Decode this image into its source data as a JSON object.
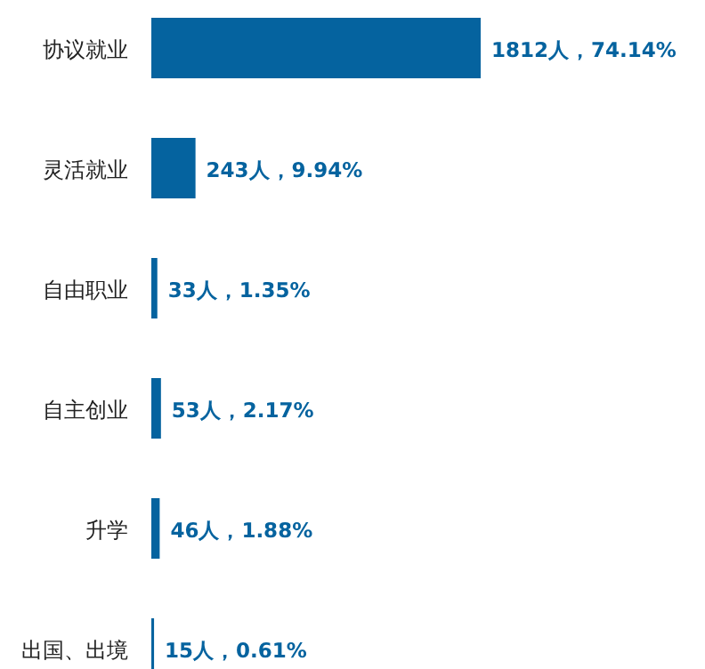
{
  "chart_data": {
    "type": "bar",
    "orientation": "horizontal",
    "categories": [
      "协议就业",
      "灵活就业",
      "自由职业",
      "自主创业",
      "升学",
      "出国、出境"
    ],
    "values": [
      1812,
      243,
      33,
      53,
      46,
      15
    ],
    "value_labels": [
      "1812人，74.14%",
      "243人，9.94%",
      "33人，1.35%",
      "53人，2.17%",
      "46人，1.88%",
      "15人，0.61%"
    ],
    "color": "#05639f"
  }
}
